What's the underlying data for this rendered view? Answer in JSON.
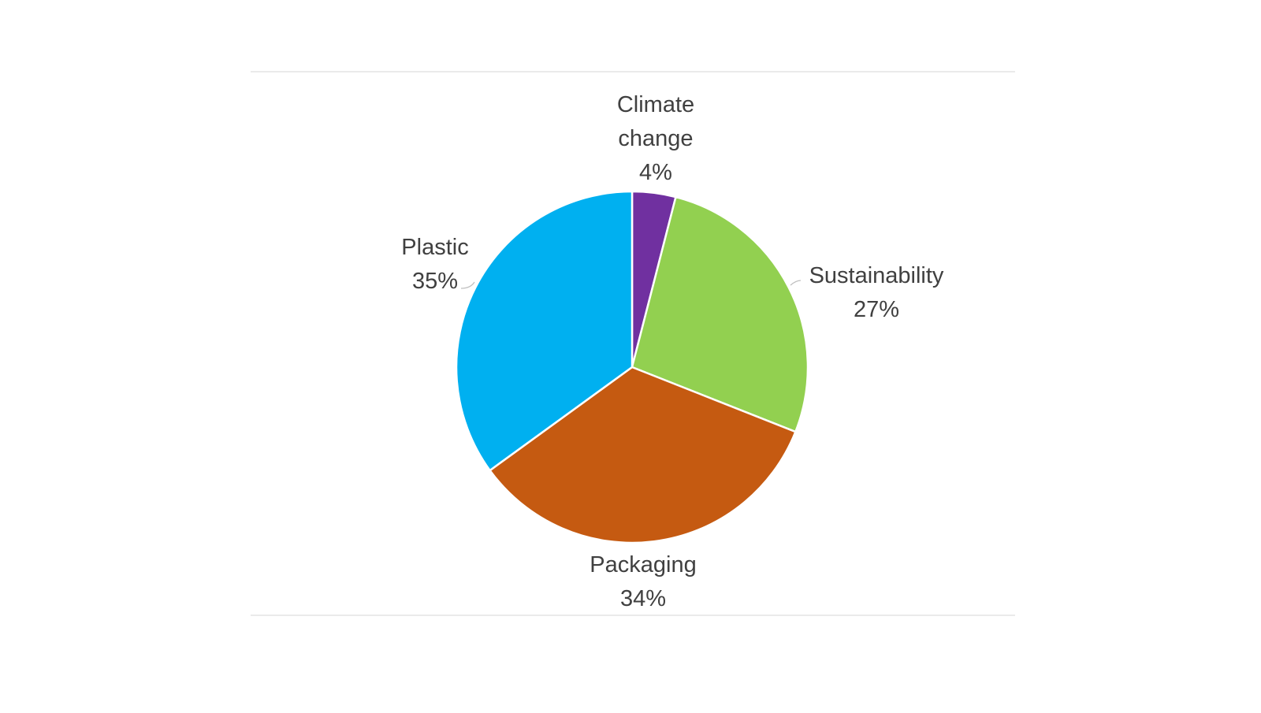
{
  "chart_data": {
    "type": "pie",
    "title": "",
    "slices": [
      {
        "label": "Climate change",
        "label_lines": [
          "Climate",
          "change"
        ],
        "percent_text": "4%",
        "value": 4,
        "color": "#7030A0"
      },
      {
        "label": "Sustainability",
        "label_lines": [
          "Sustainability"
        ],
        "percent_text": "27%",
        "value": 27,
        "color": "#92D050"
      },
      {
        "label": "Packaging",
        "label_lines": [
          "Packaging"
        ],
        "percent_text": "34%",
        "value": 34,
        "color": "#C55A11"
      },
      {
        "label": "Plastic",
        "label_lines": [
          "Plastic"
        ],
        "percent_text": "35%",
        "value": 35,
        "color": "#00B0F0"
      }
    ],
    "start": "12 o'clock",
    "direction": "clockwise",
    "legend": "none",
    "data_labels": "outside, category and percentage"
  }
}
